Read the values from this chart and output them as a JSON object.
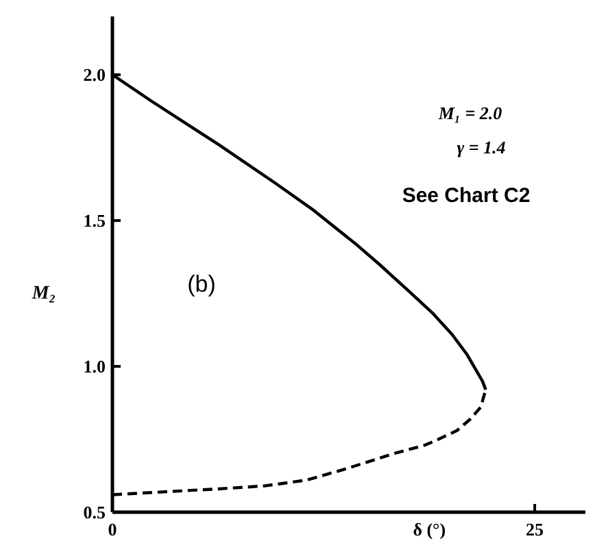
{
  "chart_data": {
    "type": "line",
    "xlabel": "δ (°)",
    "ylabel": "M₂",
    "annotations": [
      "M₁ = 2.0",
      "γ = 1.4",
      "See Chart C2",
      "(b)"
    ],
    "xlim": [
      0,
      28
    ],
    "xticks": [
      0,
      25
    ],
    "ylim": [
      0.5,
      2.2
    ],
    "yticks": [
      0.5,
      {
        "value": 1,
        "label": "1.0"
      },
      1.5,
      {
        "value": 2,
        "label": "2.0"
      }
    ],
    "marker": "none",
    "series": [
      {
        "color": "#000000",
        "line_style": "solid",
        "x": [
          0,
          2.3,
          6.3,
          9.6,
          11.8,
          14.4,
          15.8,
          17.7,
          19.0,
          20.1,
          21.0,
          21.5,
          21.9,
          22.1
        ],
        "values": [
          2.0,
          1.91,
          1.76,
          1.63,
          1.54,
          1.42,
          1.35,
          1.25,
          1.18,
          1.11,
          1.04,
          0.99,
          0.95,
          0.92
        ]
      },
      {
        "color": "#000000",
        "line_style": "dashed",
        "x": [
          0,
          6.3,
          9.0,
          11.5,
          13.9,
          16.6,
          18.5,
          19.3,
          20.4,
          21.2,
          21.8,
          22.1
        ],
        "values": [
          0.56,
          0.58,
          0.59,
          0.61,
          0.65,
          0.7,
          0.73,
          0.75,
          0.78,
          0.82,
          0.86,
          0.92
        ]
      }
    ]
  }
}
